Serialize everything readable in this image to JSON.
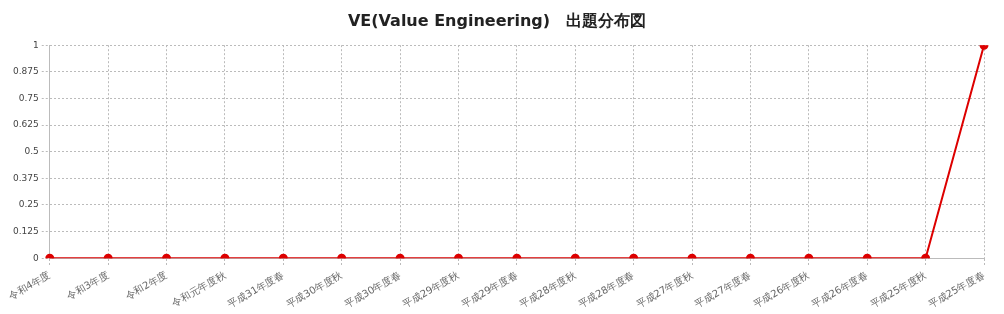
{
  "chart_data": {
    "type": "line",
    "title": "VE(Value Engineering)　出題分布図",
    "categories": [
      "令和4年度",
      "令和3年度",
      "令和2年度",
      "令和元年度秋",
      "平成31年度春",
      "平成30年度秋",
      "平成30年度春",
      "平成29年度秋",
      "平成29年度春",
      "平成28年度秋",
      "平成28年度春",
      "平成27年度秋",
      "平成27年度春",
      "平成26年度秋",
      "平成26年度春",
      "平成25年度秋",
      "平成25年度春"
    ],
    "series": [
      {
        "color": "#dd0000",
        "values": [
          0,
          0,
          0,
          0,
          0,
          0,
          0,
          0,
          0,
          0,
          0,
          0,
          0,
          0,
          0,
          0,
          1
        ]
      }
    ],
    "ylim": [
      0,
      1
    ],
    "yticks": [
      0,
      0.125,
      0.25,
      0.375,
      0.5,
      0.625,
      0.75,
      0.875,
      1
    ],
    "grid": true,
    "legend": false,
    "marker": "circle",
    "line_style": "solid"
  }
}
